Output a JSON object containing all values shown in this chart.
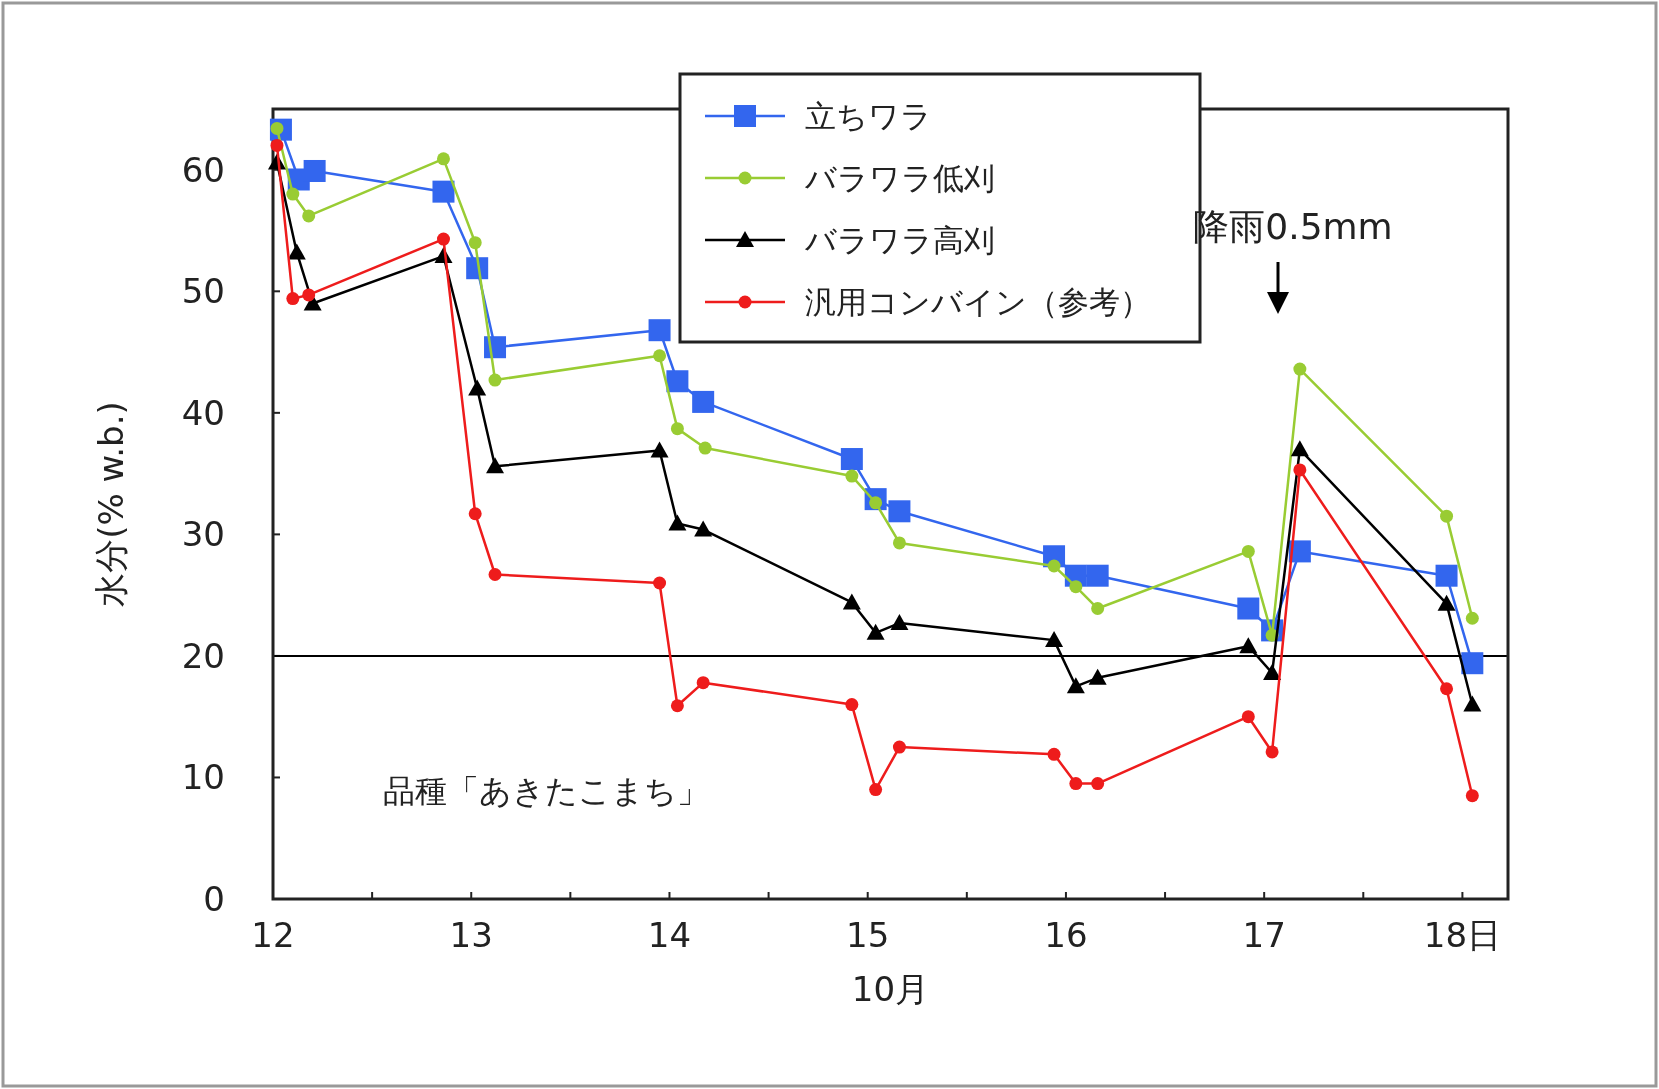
{
  "chart_data": {
    "type": "line",
    "xlabel": "10月",
    "ylabel": "水分(%  w.b.)",
    "xlim": [
      12,
      18.23
    ],
    "ylim": [
      0,
      65
    ],
    "xticks": [
      12,
      {
        "value": 12.5,
        "label": null
      },
      13,
      {
        "value": 13.5,
        "label": null
      },
      14,
      {
        "value": 14.5,
        "label": null
      },
      15,
      {
        "value": 15.5,
        "label": null
      },
      16,
      {
        "value": 16.5,
        "label": null
      },
      17,
      {
        "value": 17.5,
        "label": null
      },
      {
        "value": 18,
        "label": "18日"
      }
    ],
    "yticks": [
      0,
      10,
      20,
      30,
      40,
      50,
      60
    ],
    "legend": "top",
    "grid": false,
    "line_style": "solid",
    "series": [
      {
        "name": "立ちワラ",
        "color": "#3366ee",
        "marker": "square",
        "x": [
          12.04,
          12.13,
          12.21,
          12.86,
          13.03,
          13.12,
          13.95,
          14.04,
          14.17,
          14.92,
          15.04,
          15.16,
          15.94,
          16.05,
          16.16,
          16.92,
          17.04,
          17.18,
          17.92,
          18.05
        ],
        "values": [
          63.3,
          59.2,
          59.9,
          58.2,
          51.9,
          45.4,
          46.8,
          42.6,
          40.9,
          36.2,
          32.9,
          31.9,
          28.2,
          26.6,
          26.6,
          23.9,
          22.1,
          28.6,
          26.6,
          19.4
        ]
      },
      {
        "name": "バラワラ低刈",
        "color": "#99cc33",
        "marker": "circle",
        "x": [
          12.02,
          12.1,
          12.18,
          12.86,
          13.02,
          13.12,
          13.95,
          14.04,
          14.18,
          14.92,
          15.04,
          15.16,
          15.94,
          16.05,
          16.16,
          16.92,
          17.04,
          17.18,
          17.92,
          18.05
        ],
        "values": [
          63.4,
          58,
          56.2,
          60.9,
          54,
          42.7,
          44.7,
          38.7,
          37.1,
          34.8,
          32.6,
          29.3,
          27.4,
          25.7,
          23.9,
          28.6,
          21.7,
          43.6,
          31.5,
          23.1
        ]
      },
      {
        "name": "バラワラ高刈",
        "color": "#000000",
        "marker": "triangle",
        "x": [
          12.02,
          12.12,
          12.2,
          12.86,
          13.03,
          13.12,
          13.95,
          14.04,
          14.17,
          14.92,
          15.04,
          15.16,
          15.94,
          16.05,
          16.16,
          16.92,
          17.04,
          17.18,
          17.92,
          18.05
        ],
        "values": [
          60.6,
          53.2,
          49,
          52.9,
          42,
          35.6,
          36.9,
          30.9,
          30.4,
          24.4,
          21.9,
          22.7,
          21.3,
          17.5,
          18.2,
          20.8,
          18.6,
          37,
          24.3,
          16
        ]
      },
      {
        "name": "汎用コンバイン（参考）",
        "color": "#ee1c1c",
        "marker": "circle",
        "x": [
          12.02,
          12.1,
          12.18,
          12.86,
          13.02,
          13.12,
          13.95,
          14.04,
          14.17,
          14.92,
          15.04,
          15.16,
          15.94,
          16.05,
          16.16,
          16.92,
          17.04,
          17.18,
          17.92,
          18.05
        ],
        "values": [
          62,
          49.4,
          49.7,
          54.3,
          31.7,
          26.7,
          26,
          15.9,
          17.8,
          16,
          9,
          12.5,
          11.9,
          9.5,
          9.5,
          15,
          12.1,
          35.3,
          17.3,
          8.5
        ]
      }
    ],
    "ref_lines": [
      {
        "axis": "y",
        "value": 20,
        "color": "#000000"
      }
    ],
    "annotations": [
      "降雨0.5mm",
      "品種「あきたこまち」"
    ]
  }
}
